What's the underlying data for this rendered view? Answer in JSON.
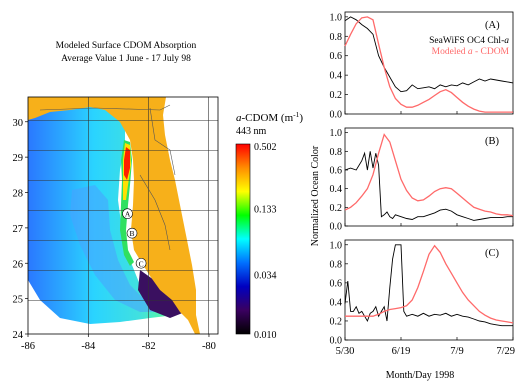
{
  "chart_data": [
    {
      "type": "heatmap",
      "title": "Modeled Surface CDOM Absorption",
      "subtitle": "Average Value 1 June - 17 July 98",
      "colorbar": {
        "title_italic": "a",
        "title_rest": "-CDOM (m",
        "title_exp": "-1",
        "title_close": ")",
        "units": "443 nm",
        "tick_labels": [
          "0.502",
          "0.133",
          "0.034",
          "0.010"
        ],
        "scale": "log",
        "range": [
          0.01,
          0.502
        ],
        "colors": [
          "#ff0000",
          "#ff8c00",
          "#ffff00",
          "#00ff00",
          "#00ffff",
          "#0070ff",
          "#0000c0",
          "#3a0060",
          "#000000"
        ]
      },
      "x_ticks": [
        "-86",
        "-84",
        "-82",
        "-80"
      ],
      "y_ticks": [
        "30",
        "29",
        "28",
        "27",
        "26",
        "25",
        "24"
      ],
      "xlim": [
        -86,
        -79.7
      ],
      "ylim": [
        24,
        30.7
      ],
      "stations": [
        {
          "label": "A",
          "lon": -82.7,
          "lat": 27.4
        },
        {
          "label": "B",
          "lon": -82.55,
          "lat": 26.85
        },
        {
          "label": "C",
          "lon": -82.25,
          "lat": 26.0
        }
      ],
      "land_color": "#f7b01a"
    },
    {
      "type": "line",
      "panel": "(A)",
      "legend": [
        {
          "text_pre": "SeaWiFS OC4 Chl-",
          "text_ital": "a",
          "color": "#000000"
        },
        {
          "text_pre": "Modeled ",
          "text_ital": "a",
          "text_post": " - CDOM",
          "color": "#ff6a6a"
        }
      ],
      "xlim": [
        0,
        60
      ],
      "ylim": [
        0,
        1.05
      ],
      "y_ticks": [
        "1.0",
        "0.8",
        "0.6",
        "0.4",
        "0.2",
        "0.0"
      ],
      "series": [
        {
          "name": "SeaWiFS OC4 Chl-a",
          "color": "#000000",
          "x": [
            0,
            2,
            4,
            6,
            8,
            10,
            12,
            14,
            16,
            18,
            20,
            22,
            24,
            26,
            28,
            30,
            32,
            34,
            36,
            38,
            40,
            42,
            44,
            46,
            48,
            50,
            52,
            54,
            56,
            58,
            60
          ],
          "y": [
            0.96,
            1.0,
            0.97,
            0.92,
            0.88,
            0.82,
            0.6,
            0.48,
            0.38,
            0.28,
            0.23,
            0.24,
            0.3,
            0.26,
            0.27,
            0.28,
            0.26,
            0.3,
            0.28,
            0.3,
            0.29,
            0.32,
            0.3,
            0.33,
            0.36,
            0.34,
            0.36,
            0.35,
            0.34,
            0.33,
            0.32
          ]
        },
        {
          "name": "Modeled a - CDOM",
          "color": "#ff6a6a",
          "x": [
            0,
            2,
            4,
            6,
            8,
            10,
            12,
            14,
            16,
            18,
            20,
            22,
            24,
            26,
            28,
            30,
            32,
            34,
            36,
            38,
            40,
            42,
            44,
            46,
            48,
            50,
            52,
            54,
            56,
            58,
            60
          ],
          "y": [
            0.7,
            0.82,
            0.93,
            0.99,
            1.0,
            0.97,
            0.72,
            0.48,
            0.28,
            0.16,
            0.1,
            0.07,
            0.07,
            0.09,
            0.12,
            0.15,
            0.19,
            0.23,
            0.25,
            0.22,
            0.17,
            0.12,
            0.08,
            0.05,
            0.03,
            0.02,
            0.02,
            0.02,
            0.02,
            0.02,
            0.02
          ]
        }
      ]
    },
    {
      "type": "line",
      "panel": "(B)",
      "xlim": [
        0,
        60
      ],
      "ylim": [
        0,
        1.05
      ],
      "y_ticks": [
        "1.0",
        "0.8",
        "0.6",
        "0.4",
        "0.2",
        "0.0"
      ],
      "series": [
        {
          "name": "SeaWiFS OC4 Chl-a",
          "color": "#000000",
          "x": [
            0,
            2,
            4,
            6,
            7,
            8,
            9,
            10,
            11,
            12,
            13,
            14,
            15,
            16,
            17,
            18,
            20,
            22,
            24,
            26,
            28,
            30,
            32,
            34,
            36,
            38,
            40,
            42,
            44,
            46,
            48,
            50,
            52,
            54,
            56,
            58,
            60
          ],
          "y": [
            0.6,
            0.62,
            0.6,
            0.7,
            0.78,
            0.6,
            0.8,
            0.62,
            0.78,
            0.65,
            0.1,
            0.12,
            0.15,
            0.1,
            0.08,
            0.12,
            0.1,
            0.08,
            0.07,
            0.1,
            0.1,
            0.12,
            0.14,
            0.17,
            0.18,
            0.16,
            0.12,
            0.1,
            0.08,
            0.06,
            0.07,
            0.08,
            0.09,
            0.09,
            0.09,
            0.1,
            0.1
          ]
        },
        {
          "name": "Modeled a - CDOM",
          "color": "#ff6a6a",
          "x": [
            0,
            2,
            4,
            6,
            8,
            10,
            12,
            14,
            16,
            18,
            20,
            22,
            24,
            26,
            28,
            30,
            32,
            34,
            36,
            38,
            40,
            42,
            44,
            46,
            48,
            50,
            52,
            54,
            56,
            58,
            60
          ],
          "y": [
            0.17,
            0.2,
            0.25,
            0.32,
            0.4,
            0.55,
            0.78,
            0.98,
            0.9,
            0.7,
            0.5,
            0.38,
            0.3,
            0.27,
            0.28,
            0.32,
            0.37,
            0.4,
            0.41,
            0.4,
            0.35,
            0.3,
            0.25,
            0.2,
            0.18,
            0.16,
            0.15,
            0.13,
            0.12,
            0.12,
            0.11
          ]
        }
      ]
    },
    {
      "type": "line",
      "panel": "(C)",
      "xlim": [
        0,
        60
      ],
      "ylim": [
        0,
        1.05
      ],
      "y_ticks": [
        "1.0",
        "0.8",
        "0.6",
        "0.4",
        "0.2",
        "0.0"
      ],
      "x_ticks": [
        "5/30",
        "6/19",
        "7/9",
        "7/29"
      ],
      "xlabel": "Month/Day 1998",
      "ylabel": "Normalized Ocean Color",
      "series": [
        {
          "name": "SeaWiFS OC4 Chl-a",
          "color": "#000000",
          "x": [
            0,
            1,
            2,
            3,
            4,
            5,
            6,
            7,
            8,
            9,
            10,
            11,
            12,
            13,
            14,
            15,
            16,
            17,
            18,
            19,
            20,
            21,
            22,
            24,
            26,
            28,
            30,
            32,
            34,
            36,
            38,
            40,
            42,
            44,
            46,
            48,
            50,
            52,
            54,
            56,
            58,
            60
          ],
          "y": [
            0.38,
            0.62,
            0.3,
            0.3,
            0.35,
            0.28,
            0.3,
            0.25,
            0.2,
            0.28,
            0.3,
            0.35,
            0.25,
            0.3,
            0.35,
            0.2,
            0.55,
            0.85,
            1.0,
            1.0,
            1.0,
            0.3,
            0.25,
            0.27,
            0.25,
            0.28,
            0.25,
            0.27,
            0.26,
            0.28,
            0.25,
            0.27,
            0.25,
            0.24,
            0.22,
            0.2,
            0.19,
            0.17,
            0.16,
            0.15,
            0.15,
            0.15
          ]
        },
        {
          "name": "Modeled a - CDOM",
          "color": "#ff6a6a",
          "x": [
            0,
            2,
            4,
            6,
            8,
            10,
            12,
            14,
            16,
            18,
            20,
            22,
            24,
            26,
            28,
            30,
            32,
            34,
            36,
            38,
            40,
            42,
            44,
            46,
            48,
            50,
            52,
            54,
            56,
            58,
            60
          ],
          "y": [
            0.25,
            0.25,
            0.25,
            0.25,
            0.25,
            0.25,
            0.27,
            0.3,
            0.32,
            0.33,
            0.34,
            0.36,
            0.42,
            0.55,
            0.72,
            0.9,
            0.99,
            0.92,
            0.8,
            0.7,
            0.6,
            0.5,
            0.42,
            0.36,
            0.3,
            0.26,
            0.23,
            0.21,
            0.2,
            0.19,
            0.18
          ]
        }
      ]
    }
  ]
}
